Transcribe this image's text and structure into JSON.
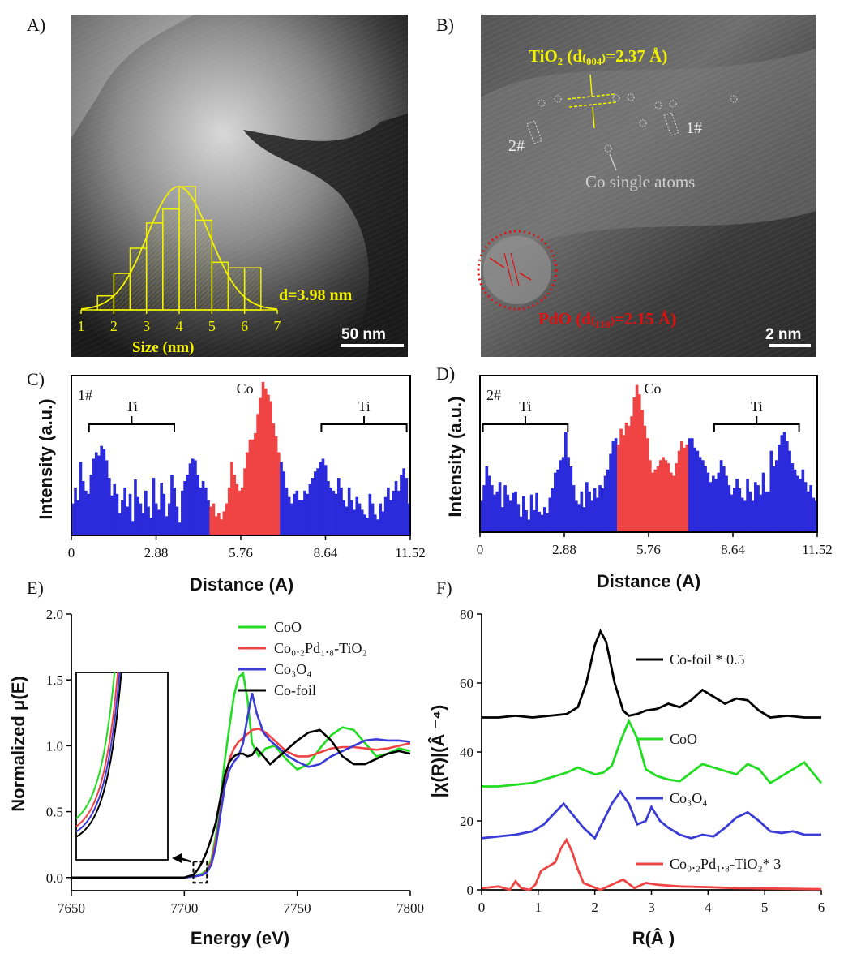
{
  "panels": {
    "A": {
      "letter": "A)",
      "scale_bar": "50 nm",
      "annotation": "d=3.98 nm",
      "hist_xlabel": "Size (nm)",
      "hist_ticks": [
        "1",
        "2",
        "3",
        "4",
        "5",
        "6",
        "7"
      ],
      "hist_bins": [
        {
          "x0": 1.5,
          "x1": 2.0,
          "count": 5
        },
        {
          "x0": 2.0,
          "x1": 2.5,
          "count": 13
        },
        {
          "x0": 2.5,
          "x1": 3.0,
          "count": 22
        },
        {
          "x0": 3.0,
          "x1": 3.5,
          "count": 31
        },
        {
          "x0": 3.5,
          "x1": 4.0,
          "count": 36
        },
        {
          "x0": 4.0,
          "x1": 4.5,
          "count": 44
        },
        {
          "x0": 4.5,
          "x1": 5.0,
          "count": 32
        },
        {
          "x0": 5.0,
          "x1": 5.5,
          "count": 17
        },
        {
          "x0": 5.5,
          "x1": 6.0,
          "count": 15
        },
        {
          "x0": 6.0,
          "x1": 6.5,
          "count": 15
        }
      ]
    },
    "B": {
      "letter": "B)",
      "tio2_label": "TiO₂ (d₍₀₀₄₎=2.37 Å)",
      "pdo_label": "PdO (d₍₁₁₀₎=2.15 Å)",
      "co_label": "Co single atoms",
      "mark_1": "1#",
      "mark_2": "2#",
      "scale_bar": "2 nm"
    }
  },
  "chart_data": [
    {
      "id": "C",
      "type": "bar",
      "letter": "C)",
      "profile_label": "1#",
      "xlabel": "Distance (A)",
      "ylabel": "Intensity (a.u.)",
      "xlim": [
        0,
        11.52
      ],
      "xticks": [
        "0",
        "2.88",
        "5.76",
        "8.64",
        "11.52"
      ],
      "ylim": [
        0,
        1
      ],
      "regions": [
        {
          "name": "Ti",
          "x0": 0.0,
          "x1": 4.7,
          "color": "#2b2bdc"
        },
        {
          "name": "Co",
          "x0": 4.7,
          "x1": 7.1,
          "color": "#f04444"
        },
        {
          "name": "Ti",
          "x0": 7.1,
          "x1": 11.52,
          "color": "#2b2bdc"
        }
      ],
      "brackets": [
        {
          "label": "Ti",
          "x0": 0.6,
          "x1": 3.5
        },
        {
          "label": "Co",
          "x0": 5.9,
          "x1": 5.9
        },
        {
          "label": "Ti",
          "x0": 8.5,
          "x1": 11.4
        }
      ],
      "values": [
        0.2,
        0.3,
        0.22,
        0.46,
        0.34,
        0.28,
        0.26,
        0.38,
        0.48,
        0.52,
        0.5,
        0.56,
        0.54,
        0.47,
        0.36,
        0.25,
        0.32,
        0.26,
        0.14,
        0.22,
        0.3,
        0.18,
        0.26,
        0.09,
        0.35,
        0.24,
        0.2,
        0.14,
        0.28,
        0.18,
        0.11,
        0.36,
        0.2,
        0.16,
        0.33,
        0.26,
        0.12,
        0.2,
        0.38,
        0.3,
        0.18,
        0.08,
        0.28,
        0.34,
        0.38,
        0.45,
        0.48,
        0.47,
        0.38,
        0.3,
        0.34,
        0.3,
        0.22,
        0.18,
        0.2,
        0.12,
        0.14,
        0.1,
        0.15,
        0.2,
        0.3,
        0.46,
        0.38,
        0.32,
        0.28,
        0.3,
        0.42,
        0.52,
        0.6,
        0.6,
        0.64,
        0.76,
        0.86,
        0.96,
        0.92,
        0.88,
        0.84,
        0.7,
        0.62,
        0.52,
        0.46,
        0.4,
        0.3,
        0.24,
        0.2,
        0.26,
        0.28,
        0.22,
        0.22,
        0.28,
        0.26,
        0.32,
        0.36,
        0.4,
        0.42,
        0.46,
        0.48,
        0.44,
        0.34,
        0.3,
        0.28,
        0.26,
        0.36,
        0.3,
        0.22,
        0.18,
        0.3,
        0.22,
        0.16,
        0.24,
        0.2,
        0.16,
        0.13,
        0.11,
        0.26,
        0.2,
        0.13,
        0.1,
        0.2,
        0.15,
        0.24,
        0.3,
        0.22,
        0.28,
        0.34,
        0.28,
        0.38,
        0.42,
        0.36,
        0.2
      ]
    },
    {
      "id": "D",
      "type": "bar",
      "letter": "D)",
      "profile_label": "2#",
      "xlabel": "Distance (A)",
      "ylabel": "Intensity (a.u.)",
      "xlim": [
        0,
        11.52
      ],
      "xticks": [
        "0",
        "2.88",
        "5.76",
        "8.64",
        "11.52"
      ],
      "ylim": [
        0,
        1
      ],
      "regions": [
        {
          "name": "Ti",
          "x0": 0.0,
          "x1": 4.7,
          "color": "#2b2bdc"
        },
        {
          "name": "Co",
          "x0": 4.7,
          "x1": 7.1,
          "color": "#f04444"
        },
        {
          "name": "Ti",
          "x0": 7.1,
          "x1": 11.52,
          "color": "#2b2bdc"
        }
      ],
      "brackets": [
        {
          "label": "Ti",
          "x0": 0.1,
          "x1": 3.0
        },
        {
          "label": "Co",
          "x0": 5.9,
          "x1": 5.9
        },
        {
          "label": "Ti",
          "x0": 8.0,
          "x1": 10.9
        }
      ],
      "values": [
        0.2,
        0.3,
        0.42,
        0.36,
        0.3,
        0.24,
        0.26,
        0.32,
        0.16,
        0.3,
        0.24,
        0.2,
        0.25,
        0.26,
        0.18,
        0.1,
        0.23,
        0.14,
        0.08,
        0.24,
        0.14,
        0.25,
        0.13,
        0.11,
        0.16,
        0.12,
        0.22,
        0.28,
        0.38,
        0.4,
        0.46,
        0.48,
        0.64,
        0.48,
        0.42,
        0.3,
        0.2,
        0.18,
        0.26,
        0.16,
        0.32,
        0.26,
        0.2,
        0.28,
        0.22,
        0.3,
        0.28,
        0.36,
        0.4,
        0.5,
        0.58,
        0.6,
        0.56,
        0.66,
        0.62,
        0.7,
        0.68,
        0.74,
        0.86,
        0.94,
        0.88,
        0.78,
        0.68,
        0.6,
        0.46,
        0.38,
        0.4,
        0.42,
        0.46,
        0.48,
        0.46,
        0.44,
        0.38,
        0.36,
        0.44,
        0.52,
        0.58,
        0.54,
        0.56,
        0.6,
        0.6,
        0.54,
        0.52,
        0.48,
        0.46,
        0.42,
        0.38,
        0.32,
        0.36,
        0.34,
        0.38,
        0.46,
        0.42,
        0.36,
        0.3,
        0.24,
        0.28,
        0.34,
        0.28,
        0.22,
        0.2,
        0.34,
        0.26,
        0.2,
        0.32,
        0.3,
        0.24,
        0.38,
        0.26,
        0.26,
        0.52,
        0.42,
        0.46,
        0.56,
        0.62,
        0.64,
        0.58,
        0.52,
        0.44,
        0.4,
        0.36,
        0.34,
        0.4,
        0.32,
        0.26,
        0.3,
        0.22,
        0.2
      ]
    },
    {
      "id": "E",
      "type": "line",
      "letter": "E)",
      "xlabel": "Energy (eV)",
      "ylabel": "Normalized μ(E)",
      "xlim": [
        7650,
        7800
      ],
      "ylim": [
        -0.1,
        2.0
      ],
      "xticks": [
        "7650",
        "7700",
        "7750",
        "7800"
      ],
      "yticks": [
        "0.0",
        "0.5",
        "1.0",
        "1.5",
        "2.0"
      ],
      "series": [
        {
          "name": "CoO",
          "color": "#22dd22",
          "x": [
            7650,
            7700,
            7705,
            7708,
            7710,
            7712,
            7714,
            7716,
            7718,
            7720,
            7722,
            7724,
            7726,
            7728,
            7730,
            7733,
            7736,
            7740,
            7745,
            7750,
            7755,
            7760,
            7765,
            7770,
            7775,
            7780,
            7785,
            7790,
            7795,
            7800
          ],
          "y": [
            0.0,
            0.0,
            0.01,
            0.03,
            0.06,
            0.14,
            0.32,
            0.6,
            0.9,
            1.15,
            1.38,
            1.52,
            1.55,
            1.35,
            1.02,
            0.92,
            0.98,
            1.0,
            0.9,
            0.82,
            0.86,
            0.98,
            1.08,
            1.14,
            1.12,
            1.02,
            0.92,
            0.94,
            0.98,
            0.96
          ]
        },
        {
          "name": "Co₀.₂Pd₁.₈-TiO₂",
          "color": "#f04444",
          "x": [
            7650,
            7700,
            7705,
            7708,
            7710,
            7712,
            7714,
            7716,
            7718,
            7720,
            7722,
            7724,
            7726,
            7728,
            7730,
            7733,
            7736,
            7740,
            7745,
            7750,
            7755,
            7760,
            7765,
            7770,
            7775,
            7780,
            7785,
            7790,
            7795,
            7800
          ],
          "y": [
            0.0,
            0.0,
            0.01,
            0.02,
            0.05,
            0.12,
            0.28,
            0.5,
            0.74,
            0.9,
            0.98,
            1.03,
            1.06,
            1.09,
            1.12,
            1.13,
            1.1,
            1.04,
            0.96,
            0.92,
            0.92,
            0.95,
            0.98,
            0.99,
            0.99,
            0.98,
            0.97,
            0.98,
            1.0,
            1.02
          ]
        },
        {
          "name": "Co₃O₄",
          "color": "#3b3bd6",
          "x": [
            7650,
            7700,
            7705,
            7708,
            7710,
            7712,
            7714,
            7716,
            7718,
            7720,
            7722,
            7724,
            7726,
            7728,
            7730,
            7732,
            7735,
            7738,
            7742,
            7746,
            7750,
            7755,
            7760,
            7765,
            7770,
            7775,
            7780,
            7785,
            7790,
            7795,
            7800
          ],
          "y": [
            0.0,
            0.0,
            0.01,
            0.02,
            0.04,
            0.1,
            0.24,
            0.48,
            0.7,
            0.82,
            0.88,
            0.92,
            1.02,
            1.22,
            1.4,
            1.25,
            1.1,
            1.04,
            0.98,
            0.92,
            0.88,
            0.84,
            0.86,
            0.92,
            0.96,
            1.0,
            1.04,
            1.05,
            1.04,
            1.04,
            1.03
          ]
        },
        {
          "name": "Co-foil",
          "color": "#000000",
          "x": [
            7650,
            7700,
            7704,
            7706,
            7708,
            7710,
            7712,
            7714,
            7716,
            7718,
            7720,
            7722,
            7724,
            7726,
            7728,
            7730,
            7732,
            7735,
            7738,
            7742,
            7746,
            7750,
            7755,
            7760,
            7765,
            7770,
            7775,
            7780,
            7785,
            7790,
            7795,
            7800
          ],
          "y": [
            0.0,
            0.0,
            0.02,
            0.06,
            0.12,
            0.2,
            0.3,
            0.42,
            0.6,
            0.78,
            0.88,
            0.92,
            0.94,
            0.94,
            0.92,
            0.93,
            0.98,
            0.92,
            0.86,
            0.92,
            0.98,
            1.04,
            1.1,
            1.12,
            1.04,
            0.92,
            0.86,
            0.86,
            0.9,
            0.94,
            0.96,
            0.94
          ]
        }
      ]
    },
    {
      "id": "F",
      "type": "line",
      "letter": "F)",
      "xlabel": "R(Â )",
      "ylabel": "|χ(R)|(Â ⁻⁴)",
      "xlim": [
        0,
        6
      ],
      "ylim": [
        0,
        80
      ],
      "xticks": [
        "0",
        "1",
        "2",
        "3",
        "4",
        "5",
        "6"
      ],
      "yticks": [
        "0",
        "20",
        "40",
        "60",
        "80"
      ],
      "series": [
        {
          "name": "Co-foil * 0.5",
          "color": "#000000",
          "x": [
            0,
            0.3,
            0.6,
            0.9,
            1.2,
            1.5,
            1.7,
            1.85,
            2.0,
            2.1,
            2.2,
            2.35,
            2.5,
            2.6,
            2.75,
            2.9,
            3.1,
            3.3,
            3.5,
            3.7,
            3.9,
            4.1,
            4.3,
            4.5,
            4.7,
            4.9,
            5.1,
            5.4,
            5.7,
            6.0
          ],
          "y": [
            50,
            50,
            50.5,
            50,
            50.5,
            51,
            53,
            60,
            71,
            75,
            72,
            60,
            52,
            50.5,
            51,
            52,
            52.5,
            54,
            53,
            55,
            58,
            56,
            54,
            55.5,
            55,
            52,
            50,
            50.5,
            50,
            50
          ]
        },
        {
          "name": "CoO",
          "color": "#22dd22",
          "x": [
            0,
            0.3,
            0.6,
            0.9,
            1.1,
            1.3,
            1.5,
            1.7,
            1.85,
            2.0,
            2.15,
            2.3,
            2.45,
            2.6,
            2.75,
            2.9,
            3.1,
            3.3,
            3.5,
            3.7,
            3.9,
            4.2,
            4.5,
            4.7,
            4.9,
            5.1,
            5.3,
            5.5,
            5.7,
            5.9,
            6.0
          ],
          "y": [
            30,
            30,
            30.5,
            31,
            32,
            33,
            34,
            35.5,
            34.5,
            33.5,
            34,
            36,
            43,
            49,
            44,
            35,
            33,
            32,
            31.5,
            34,
            36.5,
            35,
            33.5,
            36.5,
            35,
            31,
            33,
            35,
            37,
            33,
            31
          ]
        },
        {
          "name": "Co₃O₄",
          "color": "#3b3bd6",
          "x": [
            0,
            0.3,
            0.6,
            0.9,
            1.1,
            1.3,
            1.45,
            1.6,
            1.8,
            2.0,
            2.15,
            2.3,
            2.45,
            2.6,
            2.75,
            2.9,
            3.0,
            3.15,
            3.3,
            3.5,
            3.7,
            3.9,
            4.1,
            4.3,
            4.5,
            4.7,
            4.9,
            5.1,
            5.3,
            5.5,
            5.7,
            6.0
          ],
          "y": [
            15,
            15.5,
            16,
            17,
            19,
            22.5,
            25,
            22,
            18,
            15,
            20,
            25,
            28.5,
            25,
            19,
            20,
            24,
            20,
            18,
            16,
            15,
            16,
            15.5,
            18,
            21,
            22.5,
            20,
            17,
            16.5,
            17,
            16,
            16
          ]
        },
        {
          "name": "Co₀.₂Pd₁.₈-TiO₂* 3",
          "color": "#f04444",
          "x": [
            0,
            0.3,
            0.5,
            0.6,
            0.7,
            0.85,
            0.95,
            1.05,
            1.2,
            1.3,
            1.4,
            1.5,
            1.6,
            1.7,
            1.8,
            1.95,
            2.1,
            2.3,
            2.5,
            2.7,
            2.9,
            3.1,
            3.5,
            4.0,
            4.5,
            5.0,
            5.5,
            6.0
          ],
          "y": [
            0.5,
            1,
            0,
            2.5,
            0.5,
            0,
            1.5,
            5.5,
            7,
            8,
            12,
            14.5,
            11,
            6,
            2,
            1,
            0,
            1.5,
            3,
            0.5,
            2,
            1.5,
            1,
            0.8,
            0.5,
            0.4,
            0.3,
            0.2
          ]
        }
      ]
    }
  ]
}
